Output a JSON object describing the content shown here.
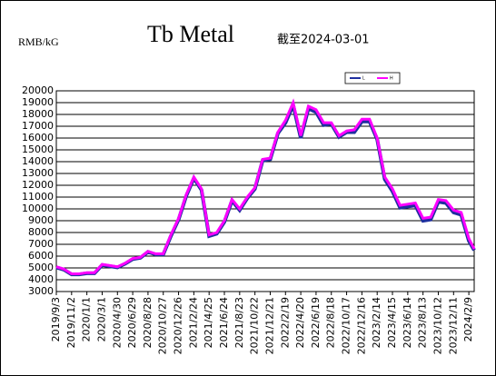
{
  "chart_data": {
    "type": "line",
    "title": "Tb Metal",
    "subtitle": "截至2024-03-01",
    "y_label": "RMB/kG",
    "x": [
      "2019/9/3",
      "2019/10/3",
      "2019/11/2",
      "2019/12/2",
      "2020/1/1",
      "2020/1/31",
      "2020/3/1",
      "2020/3/31",
      "2020/4/30",
      "2020/5/30",
      "2020/6/29",
      "2020/7/29",
      "2020/8/28",
      "2020/9/27",
      "2020/10/27",
      "2020/11/26",
      "2020/12/26",
      "2021/1/25",
      "2021/2/24",
      "2021/3/26",
      "2021/4/25",
      "2021/5/25",
      "2021/6/24",
      "2021/7/24",
      "2021/8/23",
      "2021/9/22",
      "2021/10/22",
      "2021/11/21",
      "2021/12/21",
      "2022/1/20",
      "2022/2/19",
      "2022/3/21",
      "2022/4/20",
      "2022/5/20",
      "2022/6/19",
      "2022/7/19",
      "2022/8/18",
      "2022/9/17",
      "2022/10/17",
      "2022/11/16",
      "2022/12/16",
      "2023/1/15",
      "2023/2/14",
      "2023/3/16",
      "2023/4/15",
      "2023/5/15",
      "2023/6/14",
      "2023/7/14",
      "2023/8/13",
      "2023/9/12",
      "2023/10/12",
      "2023/11/11",
      "2023/12/11",
      "2024/1/10",
      "2024/2/9",
      "2024/3/1"
    ],
    "series": [
      {
        "name": "L",
        "color": "#1f2f9f",
        "values": [
          5050,
          4850,
          4450,
          4450,
          4550,
          4550,
          5250,
          5150,
          5050,
          5350,
          5750,
          5850,
          6350,
          6150,
          6150,
          7700,
          9100,
          11100,
          12600,
          11600,
          7700,
          7900,
          8900,
          10700,
          9900,
          10900,
          11700,
          14100,
          14200,
          16400,
          17300,
          18800,
          16000,
          18500,
          18200,
          17100,
          17200,
          16100,
          16500,
          16500,
          17400,
          17400,
          15900,
          12500,
          11500,
          10100,
          10200,
          10300,
          9000,
          9100,
          10600,
          10500,
          9700,
          9500,
          7300,
          6500
        ]
      },
      {
        "name": "H",
        "color": "#ff00ff",
        "values": [
          5100,
          4900,
          4500,
          4500,
          4600,
          4600,
          5300,
          5200,
          5100,
          5400,
          5800,
          5900,
          6400,
          6200,
          6200,
          7800,
          9200,
          11200,
          12700,
          11700,
          7800,
          8000,
          9000,
          10800,
          10000,
          11000,
          11800,
          14200,
          14300,
          16500,
          17500,
          19000,
          16200,
          18700,
          18400,
          17300,
          17300,
          16200,
          16600,
          16700,
          17600,
          17600,
          16000,
          12700,
          11700,
          10300,
          10400,
          10500,
          9200,
          9300,
          10800,
          10700,
          9900,
          9700,
          7500,
          6600
        ]
      }
    ],
    "xlim": [
      "2019/9/3",
      "2024/3/1"
    ],
    "xticks": [
      "2019/9/3",
      "2019/11/2",
      "2020/1/1",
      "2020/3/1",
      "2020/4/30",
      "2020/6/29",
      "2020/8/28",
      "2020/10/27",
      "2020/12/26",
      "2021/2/24",
      "2021/4/25",
      "2021/6/24",
      "2021/8/23",
      "2021/10/22",
      "2021/12/21",
      "2022/2/19",
      "2022/4/20",
      "2022/6/19",
      "2022/8/18",
      "2022/10/17",
      "2022/12/16",
      "2023/2/14",
      "2023/4/15",
      "2023/6/14",
      "2023/8/13",
      "2023/10/12",
      "2023/12/11",
      "2024/2/9"
    ],
    "ylim": [
      3000,
      20000
    ],
    "yticks": [
      3000,
      4000,
      5000,
      6000,
      7000,
      8000,
      9000,
      10000,
      11000,
      12000,
      13000,
      14000,
      15000,
      16000,
      17000,
      18000,
      19000,
      20000
    ],
    "grid": true
  }
}
